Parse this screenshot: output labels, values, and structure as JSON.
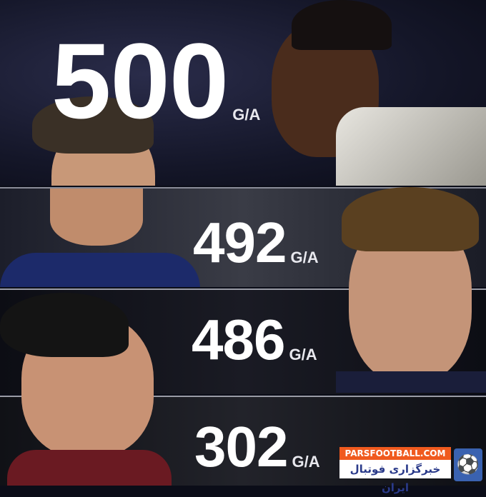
{
  "rows": [
    {
      "value": "500",
      "unit": "G/A"
    },
    {
      "value": "492",
      "unit": "G/A"
    },
    {
      "value": "486",
      "unit": "G/A"
    },
    {
      "value": "302",
      "unit": "G/A"
    }
  ],
  "watermark": {
    "site": "PARSFOOTBALL.COM",
    "tagline": "خبرگزاری فوتبال ایران",
    "icon": "footballer-icon"
  },
  "colors": {
    "watermark_orange": "#f05a1e",
    "watermark_blue": "#3a62b0"
  }
}
